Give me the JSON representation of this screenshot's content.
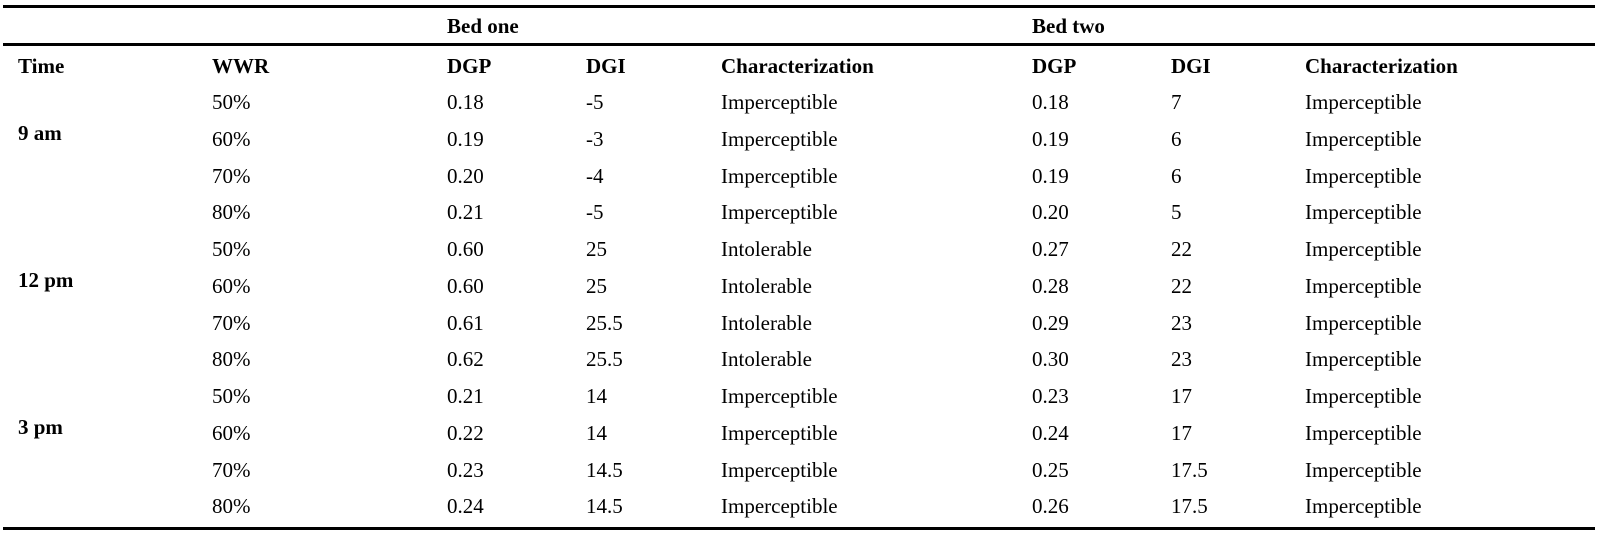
{
  "group_headers": [
    "Bed one",
    "Bed two"
  ],
  "columns": [
    "Time",
    "WWR",
    "DGP",
    "DGI",
    "Characterization",
    "DGP",
    "DGI",
    "Characterization"
  ],
  "groups": [
    {
      "time": "9 am",
      "rows": [
        {
          "wwr": "50%",
          "b1_dgp": "0.18",
          "b1_dgi": "-5",
          "b1_char": "Imperceptible",
          "b2_dgp": "0.18",
          "b2_dgi": "7",
          "b2_char": "Imperceptible"
        },
        {
          "wwr": "60%",
          "b1_dgp": "0.19",
          "b1_dgi": "-3",
          "b1_char": "Imperceptible",
          "b2_dgp": "0.19",
          "b2_dgi": "6",
          "b2_char": "Imperceptible"
        },
        {
          "wwr": "70%",
          "b1_dgp": "0.20",
          "b1_dgi": "-4",
          "b1_char": "Imperceptible",
          "b2_dgp": "0.19",
          "b2_dgi": "6",
          "b2_char": "Imperceptible"
        },
        {
          "wwr": "80%",
          "b1_dgp": "0.21",
          "b1_dgi": "-5",
          "b1_char": "Imperceptible",
          "b2_dgp": "0.20",
          "b2_dgi": "5",
          "b2_char": "Imperceptible"
        }
      ]
    },
    {
      "time": "12 pm",
      "rows": [
        {
          "wwr": "50%",
          "b1_dgp": "0.60",
          "b1_dgi": "25",
          "b1_char": "Intolerable",
          "b2_dgp": "0.27",
          "b2_dgi": "22",
          "b2_char": "Imperceptible"
        },
        {
          "wwr": "60%",
          "b1_dgp": "0.60",
          "b1_dgi": "25",
          "b1_char": "Intolerable",
          "b2_dgp": "0.28",
          "b2_dgi": "22",
          "b2_char": "Imperceptible"
        },
        {
          "wwr": "70%",
          "b1_dgp": "0.61",
          "b1_dgi": "25.5",
          "b1_char": "Intolerable",
          "b2_dgp": "0.29",
          "b2_dgi": "23",
          "b2_char": "Imperceptible"
        },
        {
          "wwr": "80%",
          "b1_dgp": "0.62",
          "b1_dgi": "25.5",
          "b1_char": "Intolerable",
          "b2_dgp": "0.30",
          "b2_dgi": "23",
          "b2_char": "Imperceptible"
        }
      ]
    },
    {
      "time": "3 pm",
      "rows": [
        {
          "wwr": "50%",
          "b1_dgp": "0.21",
          "b1_dgi": "14",
          "b1_char": "Imperceptible",
          "b2_dgp": "0.23",
          "b2_dgi": "17",
          "b2_char": "Imperceptible"
        },
        {
          "wwr": "60%",
          "b1_dgp": "0.22",
          "b1_dgi": "14",
          "b1_char": "Imperceptible",
          "b2_dgp": "0.24",
          "b2_dgi": "17",
          "b2_char": "Imperceptible"
        },
        {
          "wwr": "70%",
          "b1_dgp": "0.23",
          "b1_dgi": "14.5",
          "b1_char": "Imperceptible",
          "b2_dgp": "0.25",
          "b2_dgi": "17.5",
          "b2_char": "Imperceptible"
        },
        {
          "wwr": "80%",
          "b1_dgp": "0.24",
          "b1_dgi": "14.5",
          "b1_char": "Imperceptible",
          "b2_dgp": "0.26",
          "b2_dgi": "17.5",
          "b2_char": "Imperceptible"
        }
      ]
    }
  ]
}
